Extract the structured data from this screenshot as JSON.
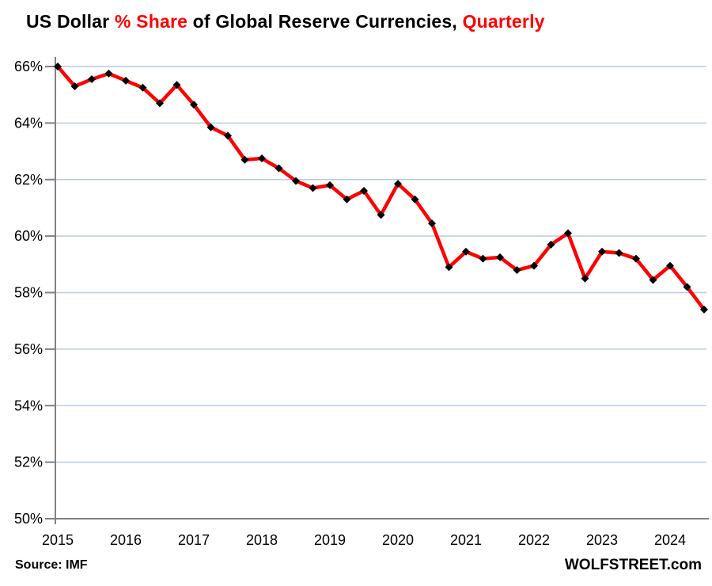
{
  "title": {
    "part1": "US Dollar ",
    "part2": "% Share",
    "part3": " of Global Reserve Currencies, ",
    "part4": "Quarterly"
  },
  "footer": {
    "source": "Source: IMF",
    "branding": "WOLFSTREET.com"
  },
  "colors": {
    "accent": "#ff0000",
    "line": "#ff0000",
    "marker": "#000000",
    "gridline": "#b8cce4",
    "axis": "#808080",
    "text": "#000000"
  },
  "chart_data": {
    "type": "line",
    "title": "US Dollar % Share of Global Reserve Currencies, Quarterly",
    "xlabel": "",
    "ylabel": "",
    "ylim": [
      50,
      66
    ],
    "y_tick_step": 2,
    "y_tick_labels": [
      "66%",
      "64%",
      "62%",
      "60%",
      "58%",
      "56%",
      "54%",
      "52%",
      "50%"
    ],
    "x_tick_labels": [
      "2015",
      "2016",
      "2017",
      "2018",
      "2019",
      "2020",
      "2021",
      "2022",
      "2023",
      "2024"
    ],
    "grid": "horizontal",
    "legend": "none",
    "source": "IMF",
    "series": [
      {
        "name": "USD % share of global reserve currencies",
        "x": [
          "2015 Q1",
          "2015 Q2",
          "2015 Q3",
          "2015 Q4",
          "2016 Q1",
          "2016 Q2",
          "2016 Q3",
          "2016 Q4",
          "2017 Q1",
          "2017 Q2",
          "2017 Q3",
          "2017 Q4",
          "2018 Q1",
          "2018 Q2",
          "2018 Q3",
          "2018 Q4",
          "2019 Q1",
          "2019 Q2",
          "2019 Q3",
          "2019 Q4",
          "2020 Q1",
          "2020 Q2",
          "2020 Q3",
          "2020 Q4",
          "2021 Q1",
          "2021 Q2",
          "2021 Q3",
          "2021 Q4",
          "2022 Q1",
          "2022 Q2",
          "2022 Q3",
          "2022 Q4",
          "2023 Q1",
          "2023 Q2",
          "2023 Q3",
          "2023 Q4",
          "2024 Q1",
          "2024 Q2",
          "2024 Q3"
        ],
        "values": [
          66.0,
          65.3,
          65.55,
          65.75,
          65.5,
          65.25,
          64.7,
          65.35,
          64.65,
          63.85,
          63.55,
          62.7,
          62.75,
          62.4,
          61.95,
          61.7,
          61.8,
          61.3,
          61.6,
          60.75,
          61.85,
          61.3,
          60.45,
          58.9,
          59.45,
          59.2,
          59.25,
          58.8,
          58.95,
          59.7,
          60.1,
          58.5,
          59.45,
          59.4,
          59.2,
          58.45,
          58.95,
          58.2,
          57.4
        ]
      }
    ]
  }
}
